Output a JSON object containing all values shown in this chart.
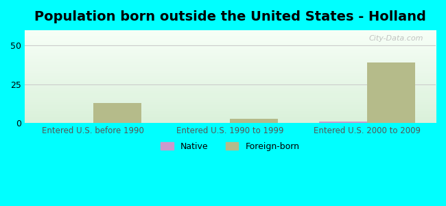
{
  "title": "Population born outside the United States - Holland",
  "background_color": "#00ffff",
  "plot_bg_gradient_top": "#e8f5e8",
  "plot_bg_gradient_bottom": "#f0fff0",
  "categories": [
    "Entered U.S. before 1990",
    "Entered U.S. 1990 to 1999",
    "Entered U.S. 2000 to 2009"
  ],
  "native_values": [
    0,
    0,
    1
  ],
  "foreign_born_values": [
    13,
    3,
    39
  ],
  "native_color": "#cc99cc",
  "foreign_born_color": "#b5bb8a",
  "bar_width": 0.35,
  "ylim": [
    0,
    60
  ],
  "yticks": [
    0,
    25,
    50
  ],
  "grid_color": "#cccccc",
  "title_fontsize": 14,
  "label_fontsize": 8.5,
  "tick_fontsize": 9,
  "legend_fontsize": 9,
  "watermark": "City-Data.com"
}
